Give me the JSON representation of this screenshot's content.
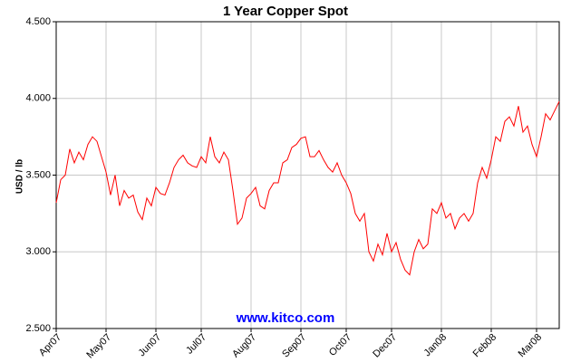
{
  "chart_data": {
    "type": "line",
    "title": "1 Year Copper Spot",
    "ylabel": "USD / lb",
    "watermark": "www.kitco.com",
    "color": "#ff0000",
    "grid": true,
    "xlim": [
      0,
      111
    ],
    "xticks": [
      {
        "value": 0,
        "label": "Apr07"
      },
      {
        "value": 11,
        "label": "May07"
      },
      {
        "value": 22,
        "label": "Jun07"
      },
      {
        "value": 32,
        "label": "Jul07"
      },
      {
        "value": 43,
        "label": "Aug07"
      },
      {
        "value": 54,
        "label": "Sep07"
      },
      {
        "value": 64,
        "label": "Oct07"
      },
      {
        "value": 74,
        "label": "Dec07"
      },
      {
        "value": 85,
        "label": "Jan08"
      },
      {
        "value": 96,
        "label": "Feb08"
      },
      {
        "value": 106,
        "label": "Mar08"
      }
    ],
    "ylim": [
      2.5,
      4.5
    ],
    "yticks": [
      {
        "value": 2.5,
        "label": "2.500"
      },
      {
        "value": 3.0,
        "label": "3.000"
      },
      {
        "value": 3.5,
        "label": "3.500"
      },
      {
        "value": 4.0,
        "label": "4.000"
      },
      {
        "value": 4.5,
        "label": "4.500"
      }
    ],
    "values": [
      3.32,
      3.47,
      3.5,
      3.67,
      3.58,
      3.65,
      3.6,
      3.7,
      3.75,
      3.72,
      3.62,
      3.52,
      3.37,
      3.5,
      3.3,
      3.4,
      3.35,
      3.37,
      3.26,
      3.21,
      3.35,
      3.3,
      3.42,
      3.38,
      3.37,
      3.45,
      3.55,
      3.6,
      3.63,
      3.58,
      3.56,
      3.55,
      3.62,
      3.58,
      3.75,
      3.62,
      3.58,
      3.65,
      3.6,
      3.4,
      3.18,
      3.22,
      3.35,
      3.38,
      3.42,
      3.3,
      3.28,
      3.4,
      3.45,
      3.45,
      3.58,
      3.6,
      3.68,
      3.7,
      3.74,
      3.75,
      3.62,
      3.62,
      3.66,
      3.6,
      3.55,
      3.52,
      3.58,
      3.5,
      3.45,
      3.38,
      3.25,
      3.2,
      3.25,
      3.0,
      2.94,
      3.05,
      2.98,
      3.12,
      3.0,
      3.06,
      2.95,
      2.88,
      2.85,
      3.0,
      3.08,
      3.02,
      3.05,
      3.28,
      3.25,
      3.32,
      3.22,
      3.25,
      3.15,
      3.22,
      3.25,
      3.2,
      3.25,
      3.45,
      3.55,
      3.48,
      3.6,
      3.75,
      3.72,
      3.85,
      3.88,
      3.82,
      3.95,
      3.78,
      3.82,
      3.7,
      3.62,
      3.75,
      3.9,
      3.86,
      3.92,
      3.98
    ]
  }
}
